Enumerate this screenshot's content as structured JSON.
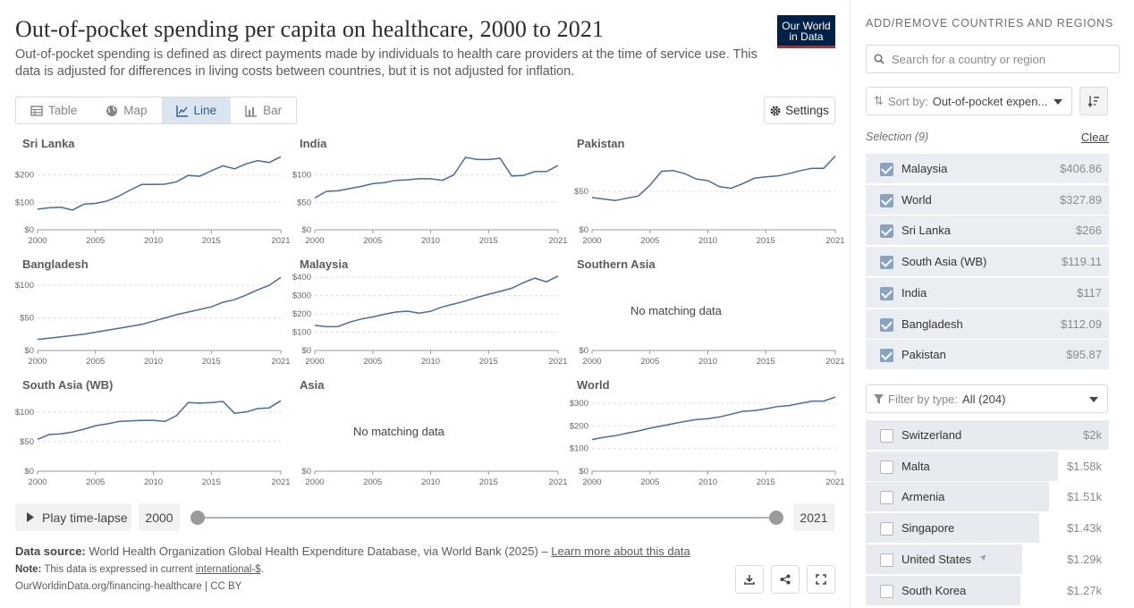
{
  "header": {
    "title": "Out-of-pocket spending per capita on healthcare, 2000 to 2021",
    "subtitle": "Out-of-pocket spending is defined as direct payments made by individuals to health care providers at the time of service use. This data is adjusted for differences in living costs between countries, but it is not adjusted for inflation.",
    "logo_line1": "Our World",
    "logo_line2": "in Data"
  },
  "tabs": [
    {
      "label": "Table",
      "icon": "table-icon"
    },
    {
      "label": "Map",
      "icon": "globe-icon"
    },
    {
      "label": "Line",
      "icon": "line-chart-icon"
    },
    {
      "label": "Bar",
      "icon": "bar-chart-icon"
    }
  ],
  "active_tab": "Line",
  "settings_label": "Settings",
  "chart_data": {
    "type": "line",
    "layout": "small-multiples",
    "x_ticks": [
      2000,
      2005,
      2010,
      2015,
      2021
    ],
    "line_color": "#4c6a9c",
    "no_data_label": "No matching data",
    "panels": [
      {
        "name": "Sri Lanka",
        "y_ticks": [
          "$0",
          "$100",
          "$200"
        ],
        "ymax": 280,
        "values": [
          75,
          80,
          82,
          72,
          93,
          96,
          105,
          122,
          145,
          165,
          165,
          166,
          175,
          198,
          195,
          215,
          233,
          222,
          240,
          252,
          245,
          266
        ]
      },
      {
        "name": "India",
        "y_ticks": [
          "$0",
          "$50",
          "$100"
        ],
        "ymax": 140,
        "values": [
          58,
          70,
          71,
          75,
          79,
          84,
          86,
          90,
          91,
          93,
          93,
          90,
          100,
          132,
          128,
          128,
          130,
          98,
          99,
          106,
          106,
          117
        ]
      },
      {
        "name": "Pakistan",
        "y_ticks": [
          "$0",
          "$50"
        ],
        "ymax": 100,
        "values": [
          42,
          40,
          38,
          41,
          44,
          58,
          76,
          77,
          73,
          66,
          64,
          56,
          54,
          60,
          67,
          69,
          70,
          73,
          77,
          80,
          80,
          95.87
        ]
      },
      {
        "name": "Bangladesh",
        "y_ticks": [
          "$0",
          "$50",
          "$100"
        ],
        "ymax": 118,
        "values": [
          17,
          19,
          21,
          23,
          25,
          28,
          31,
          34,
          37,
          40,
          45,
          50,
          55,
          59,
          63,
          67,
          74,
          78,
          85,
          93,
          100,
          112.09
        ]
      },
      {
        "name": "Malaysia",
        "y_ticks": [
          "$0",
          "$100",
          "$200",
          "$300",
          "$400"
        ],
        "ymax": 420,
        "values": [
          137,
          130,
          131,
          155,
          172,
          183,
          198,
          210,
          215,
          204,
          214,
          238,
          254,
          270,
          290,
          307,
          323,
          340,
          370,
          395,
          375,
          406.86
        ]
      },
      {
        "name": "Southern Asia",
        "y_ticks": [
          "$0"
        ],
        "ymax": 100,
        "values": []
      },
      {
        "name": "South Asia (WB)",
        "y_ticks": [
          "$0",
          "$50",
          "$100"
        ],
        "ymax": 130,
        "values": [
          54,
          62,
          63,
          66,
          71,
          77,
          80,
          84,
          85,
          86,
          86,
          84,
          94,
          116,
          115,
          116,
          118,
          98,
          100,
          106,
          107,
          119.11
        ]
      },
      {
        "name": "Asia",
        "y_ticks": [
          "$0"
        ],
        "ymax": 100,
        "values": []
      },
      {
        "name": "World",
        "y_ticks": [
          "$0",
          "$100",
          "$200",
          "$300"
        ],
        "ymax": 340,
        "values": [
          140,
          150,
          157,
          168,
          178,
          190,
          200,
          210,
          220,
          228,
          232,
          240,
          252,
          265,
          268,
          276,
          286,
          290,
          300,
          310,
          310,
          327.89
        ]
      }
    ]
  },
  "timeline": {
    "play_label": "Play time-lapse",
    "start_year": "2000",
    "end_year": "2021"
  },
  "footer": {
    "source_label": "Data source:",
    "source_text": "World Health Organization Global Health Expenditure Database, via World Bank (2025) –",
    "learn_more": "Learn more about this data",
    "note_label": "Note:",
    "note_text": "This data is expressed in current",
    "note_link": "international-$",
    "note_end": ".",
    "url": "OurWorldinData.org/financing-healthcare | CC BY"
  },
  "sidebar": {
    "heading": "ADD/REMOVE COUNTRIES AND REGIONS",
    "search_placeholder": "Search for a country or region",
    "sort_label": "Sort by:",
    "sort_value": "Out-of-pocket expen...",
    "selection_label": "Selection (9)",
    "clear_label": "Clear",
    "selected": [
      {
        "name": "Malaysia",
        "value": "$406.86",
        "frac": 1.0
      },
      {
        "name": "World",
        "value": "$327.89",
        "frac": 1.0
      },
      {
        "name": "Sri Lanka",
        "value": "$266",
        "frac": 1.0
      },
      {
        "name": "South Asia (WB)",
        "value": "$119.11",
        "frac": 1.0
      },
      {
        "name": "India",
        "value": "$117",
        "frac": 1.0
      },
      {
        "name": "Bangladesh",
        "value": "$112.09",
        "frac": 1.0
      },
      {
        "name": "Pakistan",
        "value": "$95.87",
        "frac": 1.0
      }
    ],
    "filter_label": "Filter by type:",
    "filter_value": "All (204)",
    "others": [
      {
        "name": "Switzerland",
        "value": "$2k",
        "frac": 1.0
      },
      {
        "name": "Malta",
        "value": "$1.58k",
        "frac": 0.79
      },
      {
        "name": "Armenia",
        "value": "$1.51k",
        "frac": 0.755
      },
      {
        "name": "Singapore",
        "value": "$1.43k",
        "frac": 0.715
      },
      {
        "name": "United States",
        "value": "$1.29k",
        "frac": 0.645
      },
      {
        "name": "South Korea",
        "value": "$1.27k",
        "frac": 0.635
      }
    ]
  }
}
